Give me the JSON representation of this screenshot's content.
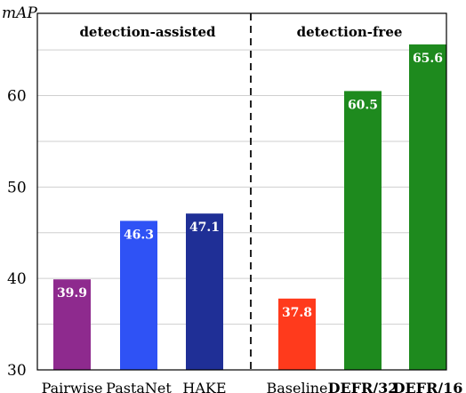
{
  "chart_data": {
    "type": "bar",
    "ylabel": "mAP",
    "ylim": [
      30,
      69
    ],
    "yticks": [
      30,
      40,
      50,
      60
    ],
    "grid": true,
    "categories": [
      "Pairwise",
      "PastaNet",
      "HAKE",
      "Baseline",
      "DEFR/32",
      "DEFR/16"
    ],
    "values": [
      39.9,
      46.3,
      47.1,
      37.8,
      60.5,
      65.6
    ],
    "value_labels": [
      "39.9",
      "46.3",
      "47.1",
      "37.8",
      "60.5",
      "65.6"
    ],
    "bold_categories": [
      "DEFR/32",
      "DEFR/16"
    ],
    "colors": [
      "#8e2a8e",
      "#2f52f5",
      "#1f2f96",
      "#ff3a1c",
      "#1e8a1e",
      "#1e8a1e"
    ],
    "groups": [
      {
        "label": "detection-assisted",
        "categories": [
          "Pairwise",
          "PastaNet",
          "HAKE"
        ]
      },
      {
        "label": "detection-free",
        "categories": [
          "Baseline",
          "DEFR/32",
          "DEFR/16"
        ]
      }
    ]
  }
}
